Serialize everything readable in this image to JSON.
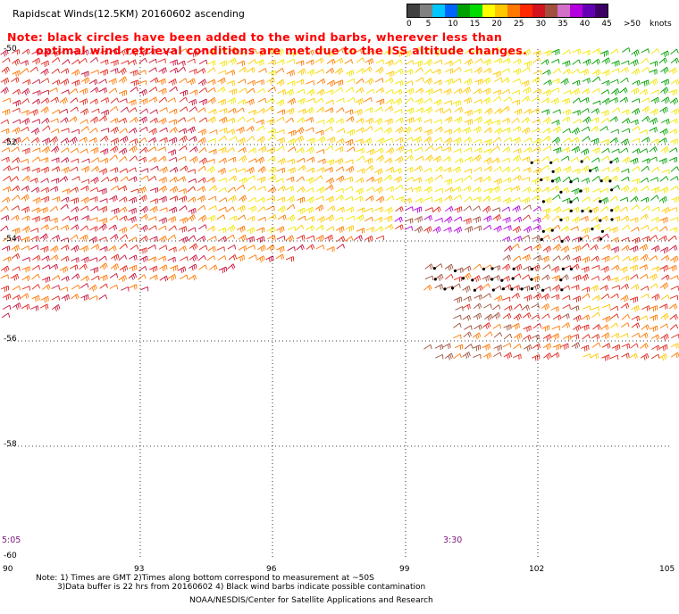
{
  "title": "Rapidscat Winds(12.5KM) 20160602 ascending",
  "note": {
    "line1": "Note: black circles have been added to the wind barbs, wherever less than",
    "line2": "optimal wind retrieval conditions are met due to the ISS altitude changes."
  },
  "legend": {
    "unit": "knots",
    "ticks": [
      "0",
      "5",
      "10",
      "15",
      "20",
      "25",
      "30",
      "35",
      "40",
      "45",
      ">50"
    ],
    "colors": [
      "#404040",
      "#808080",
      "#00c8ff",
      "#0064ff",
      "#00a000",
      "#00dc00",
      "#ffff00",
      "#ffc800",
      "#ff7800",
      "#ff2800",
      "#d2141e",
      "#a0503c",
      "#d270c8",
      "#b400dc",
      "#6400b4",
      "#3c0064"
    ]
  },
  "axes": {
    "lat_labels": [
      "-50",
      "-52",
      "-54",
      "-56",
      "-58",
      "-60"
    ],
    "lon_labels": [
      "90",
      "93",
      "96",
      "99",
      "102",
      "105"
    ]
  },
  "times": {
    "left": "5:05",
    "right": "3:30"
  },
  "footer": {
    "line1": "Note: 1) Times are GMT 2)Times along bottom correspond to measurement at ~50S",
    "line2": "3)Data buffer is 22 hrs from 20160602 4) Black wind barbs indicate possible contamination",
    "line3": "NOAA/NESDIS/Center for Satellite Applications and Research"
  }
}
